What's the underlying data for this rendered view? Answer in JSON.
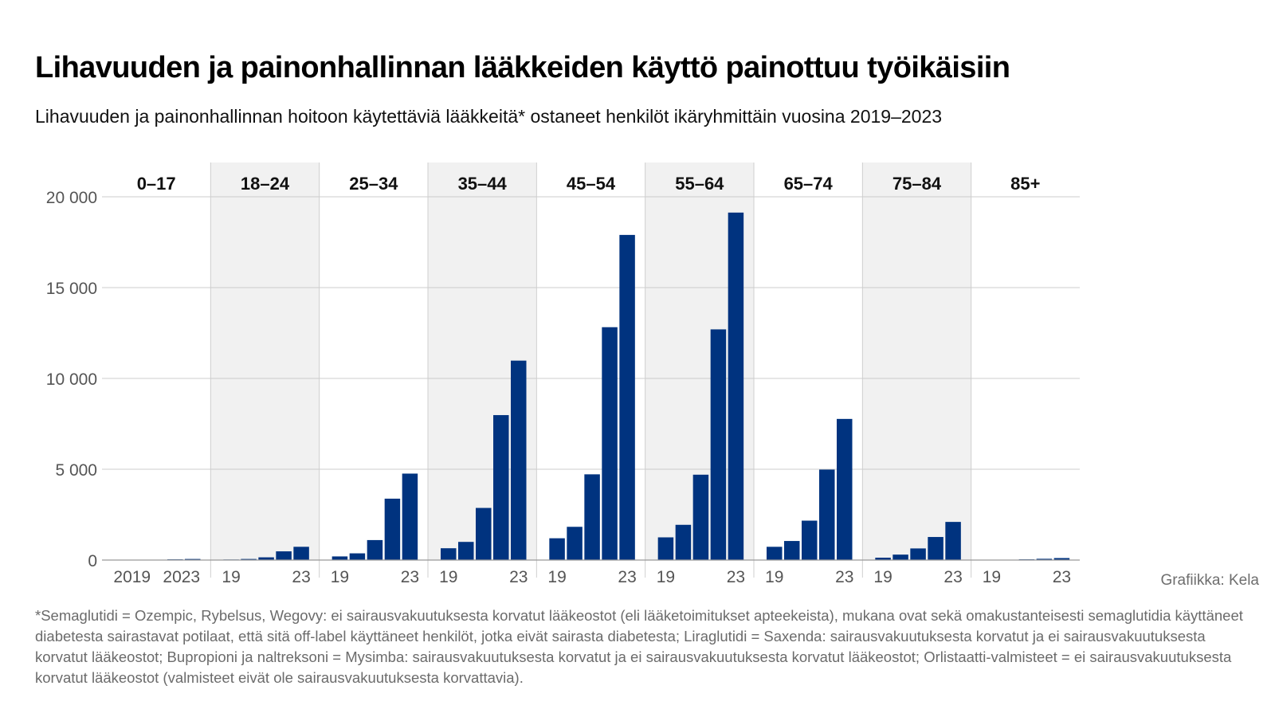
{
  "title": "Lihavuuden ja painonhallinnan lääkkeiden käyttö painottuu työikäisiin",
  "subtitle": "Lihavuuden ja painonhallinnan hoitoon käytettäviä lääkkeitä* ostaneet henkilöt ikäryhmittäin vuosina 2019–2023",
  "credit": "Grafiikka: Kela",
  "footnote": "*Semaglutidi = Ozempic, Rybelsus, Wegovy: ei sairausvakuutuksesta korvatut lääkeostot (eli lääketoimitukset apteekeista), mukana ovat sekä omakustanteisesti semaglutidia käyttäneet diabetesta sairastavat potilaat, että sitä off-label käyttäneet henkilöt, jotka eivät sairasta diabetesta; Liraglutidi = Saxenda: sairausvakuu­tuksesta korvatut ja ei sairausvakuutuksesta korvatut lääkeostot; Bupropioni ja naltreksoni = Mysimba: sairausvakuutuksesta korvatut ja ei sairausvakuutuksesta korvatut lääkeostot; Orlistaatti-valmisteet = ei sairausvakuutuksesta korvatut lääkeostot (valmisteet eivät ole sairausvakuutuksesta korvattavia).",
  "colors": {
    "bar": "#00337f",
    "shade": "#f1f1f1",
    "grid": "#cccccc",
    "axis": "#999999",
    "tick_text": "#555555"
  },
  "chart_data": {
    "type": "bar",
    "years": [
      "2019",
      "2020",
      "2021",
      "2022",
      "2023"
    ],
    "ylim": [
      0,
      20000
    ],
    "yticks": [
      0,
      5000,
      10000,
      15000,
      20000
    ],
    "ytick_labels": [
      "0",
      "5 000",
      "10 000",
      "15 000",
      "20 000"
    ],
    "groups": [
      {
        "label": "0–17",
        "x_first": "2019",
        "x_last": "2023",
        "values": [
          10,
          15,
          20,
          40,
          60
        ]
      },
      {
        "label": "18–24",
        "x_first": "19",
        "x_last": "23",
        "values": [
          30,
          60,
          150,
          480,
          730
        ]
      },
      {
        "label": "25–34",
        "x_first": "19",
        "x_last": "23",
        "values": [
          200,
          370,
          1100,
          3380,
          4760
        ]
      },
      {
        "label": "35–44",
        "x_first": "19",
        "x_last": "23",
        "values": [
          650,
          1000,
          2870,
          7980,
          10980
        ]
      },
      {
        "label": "45–54",
        "x_first": "19",
        "x_last": "23",
        "values": [
          1200,
          1830,
          4720,
          12820,
          17900
        ]
      },
      {
        "label": "55–64",
        "x_first": "19",
        "x_last": "23",
        "values": [
          1250,
          1940,
          4700,
          12700,
          19130
        ]
      },
      {
        "label": "65–74",
        "x_first": "19",
        "x_last": "23",
        "values": [
          730,
          1050,
          2170,
          4980,
          7770
        ]
      },
      {
        "label": "75–84",
        "x_first": "19",
        "x_last": "23",
        "values": [
          130,
          300,
          640,
          1270,
          2100
        ]
      },
      {
        "label": "85+",
        "x_first": "19",
        "x_last": "23",
        "values": [
          15,
          20,
          40,
          70,
          110
        ]
      }
    ]
  }
}
